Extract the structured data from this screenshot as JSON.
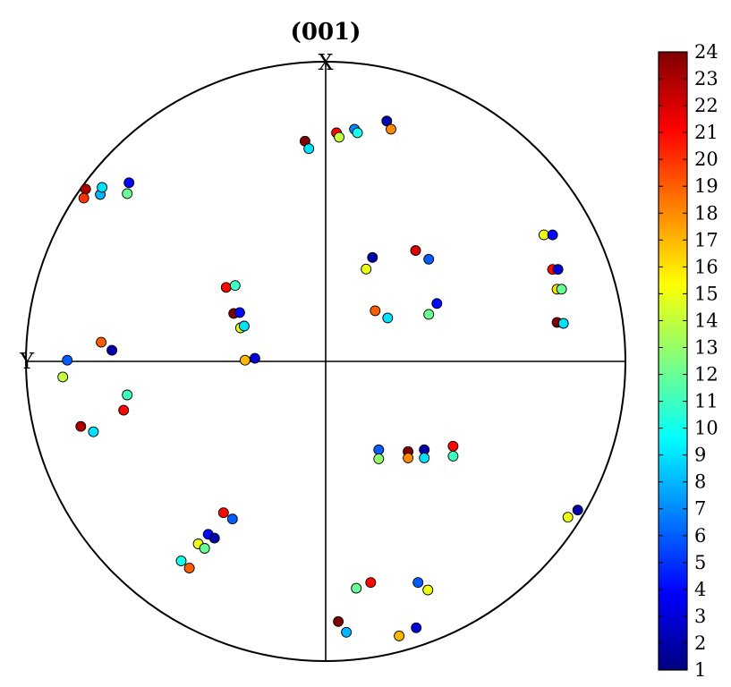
{
  "chart_data": {
    "type": "scatter",
    "title": "(001)",
    "xlabel": "",
    "ylabel": "",
    "grid": false,
    "axis_labels": {
      "top": "X",
      "left": "Y"
    },
    "colorbar": {
      "min": 1,
      "max": 24,
      "ticks": [
        "1",
        "2",
        "3",
        "4",
        "5",
        "6",
        "7",
        "8",
        "9",
        "10",
        "11",
        "12",
        "13",
        "14",
        "15",
        "16",
        "17",
        "18",
        "19",
        "20",
        "21",
        "22",
        "23",
        "24"
      ],
      "colormap": "jet",
      "colormap_stops": [
        "#00007f",
        "#0000ff",
        "#007fff",
        "#00ffff",
        "#7fff7f",
        "#ffff00",
        "#ff7f00",
        "#ff0000",
        "#7f0000"
      ]
    },
    "domain": {
      "x": [
        -1,
        1
      ],
      "y": [
        -1,
        1
      ]
    },
    "points": [
      {
        "x": -0.069,
        "y": 0.735,
        "c": 24
      },
      {
        "x": -0.056,
        "y": 0.71,
        "c": 9
      },
      {
        "x": 0.036,
        "y": 0.763,
        "c": 21
      },
      {
        "x": 0.045,
        "y": 0.748,
        "c": 14
      },
      {
        "x": 0.096,
        "y": 0.775,
        "c": 7
      },
      {
        "x": 0.106,
        "y": 0.763,
        "c": 10
      },
      {
        "x": 0.204,
        "y": 0.802,
        "c": 2
      },
      {
        "x": 0.218,
        "y": 0.775,
        "c": 18
      },
      {
        "x": -0.801,
        "y": 0.575,
        "c": 23
      },
      {
        "x": -0.807,
        "y": 0.545,
        "c": 20
      },
      {
        "x": -0.752,
        "y": 0.557,
        "c": 8
      },
      {
        "x": -0.746,
        "y": 0.581,
        "c": 9
      },
      {
        "x": -0.662,
        "y": 0.56,
        "c": 12
      },
      {
        "x": -0.656,
        "y": 0.596,
        "c": 4
      },
      {
        "x": 0.156,
        "y": 0.347,
        "c": 2
      },
      {
        "x": 0.135,
        "y": 0.308,
        "c": 15
      },
      {
        "x": 0.3,
        "y": 0.37,
        "c": 22
      },
      {
        "x": 0.344,
        "y": 0.341,
        "c": 6
      },
      {
        "x": 0.165,
        "y": 0.169,
        "c": 19
      },
      {
        "x": 0.207,
        "y": 0.145,
        "c": 9
      },
      {
        "x": 0.344,
        "y": 0.157,
        "c": 12
      },
      {
        "x": 0.371,
        "y": 0.193,
        "c": 4
      },
      {
        "x": 0.728,
        "y": 0.422,
        "c": 15
      },
      {
        "x": 0.757,
        "y": 0.422,
        "c": 4
      },
      {
        "x": 0.757,
        "y": 0.307,
        "c": 21
      },
      {
        "x": 0.775,
        "y": 0.307,
        "c": 3
      },
      {
        "x": 0.772,
        "y": 0.241,
        "c": 16
      },
      {
        "x": 0.787,
        "y": 0.241,
        "c": 12
      },
      {
        "x": 0.772,
        "y": 0.13,
        "c": 24
      },
      {
        "x": 0.793,
        "y": 0.127,
        "c": 9
      },
      {
        "x": -0.332,
        "y": 0.247,
        "c": 21
      },
      {
        "x": -0.302,
        "y": 0.253,
        "c": 11
      },
      {
        "x": -0.307,
        "y": 0.16,
        "c": 24
      },
      {
        "x": -0.287,
        "y": 0.163,
        "c": 4
      },
      {
        "x": -0.284,
        "y": 0.112,
        "c": 15
      },
      {
        "x": -0.272,
        "y": 0.118,
        "c": 9
      },
      {
        "x": -0.269,
        "y": 0.004,
        "c": 17
      },
      {
        "x": -0.236,
        "y": 0.01,
        "c": 3
      },
      {
        "x": -0.749,
        "y": 0.064,
        "c": 19
      },
      {
        "x": -0.713,
        "y": 0.037,
        "c": 2
      },
      {
        "x": -0.862,
        "y": 0.004,
        "c": 6
      },
      {
        "x": -0.877,
        "y": -0.052,
        "c": 14
      },
      {
        "x": -0.662,
        "y": -0.112,
        "c": 11
      },
      {
        "x": -0.674,
        "y": -0.163,
        "c": 21
      },
      {
        "x": -0.817,
        "y": -0.217,
        "c": 23
      },
      {
        "x": -0.775,
        "y": -0.235,
        "c": 9
      },
      {
        "x": 0.177,
        "y": -0.295,
        "c": 6
      },
      {
        "x": 0.177,
        "y": -0.325,
        "c": 13
      },
      {
        "x": 0.275,
        "y": -0.301,
        "c": 24
      },
      {
        "x": 0.275,
        "y": -0.322,
        "c": 18
      },
      {
        "x": 0.329,
        "y": -0.295,
        "c": 2
      },
      {
        "x": 0.329,
        "y": -0.322,
        "c": 9
      },
      {
        "x": 0.425,
        "y": -0.283,
        "c": 21
      },
      {
        "x": 0.425,
        "y": -0.316,
        "c": 11
      },
      {
        "x": 0.841,
        "y": -0.496,
        "c": 2
      },
      {
        "x": 0.808,
        "y": -0.52,
        "c": 15
      },
      {
        "x": -0.341,
        "y": -0.505,
        "c": 21
      },
      {
        "x": -0.311,
        "y": -0.526,
        "c": 6
      },
      {
        "x": -0.392,
        "y": -0.577,
        "c": 4
      },
      {
        "x": -0.371,
        "y": -0.59,
        "c": 2
      },
      {
        "x": -0.425,
        "y": -0.609,
        "c": 15
      },
      {
        "x": -0.404,
        "y": -0.624,
        "c": 12
      },
      {
        "x": -0.482,
        "y": -0.666,
        "c": 10
      },
      {
        "x": -0.455,
        "y": -0.69,
        "c": 19
      },
      {
        "x": 0.102,
        "y": -0.757,
        "c": 12
      },
      {
        "x": 0.15,
        "y": -0.738,
        "c": 21
      },
      {
        "x": 0.308,
        "y": -0.738,
        "c": 6
      },
      {
        "x": 0.341,
        "y": -0.763,
        "c": 15
      },
      {
        "x": 0.042,
        "y": -0.868,
        "c": 24
      },
      {
        "x": 0.069,
        "y": -0.904,
        "c": 8
      },
      {
        "x": 0.245,
        "y": -0.916,
        "c": 17
      },
      {
        "x": 0.302,
        "y": -0.889,
        "c": 3
      }
    ]
  }
}
